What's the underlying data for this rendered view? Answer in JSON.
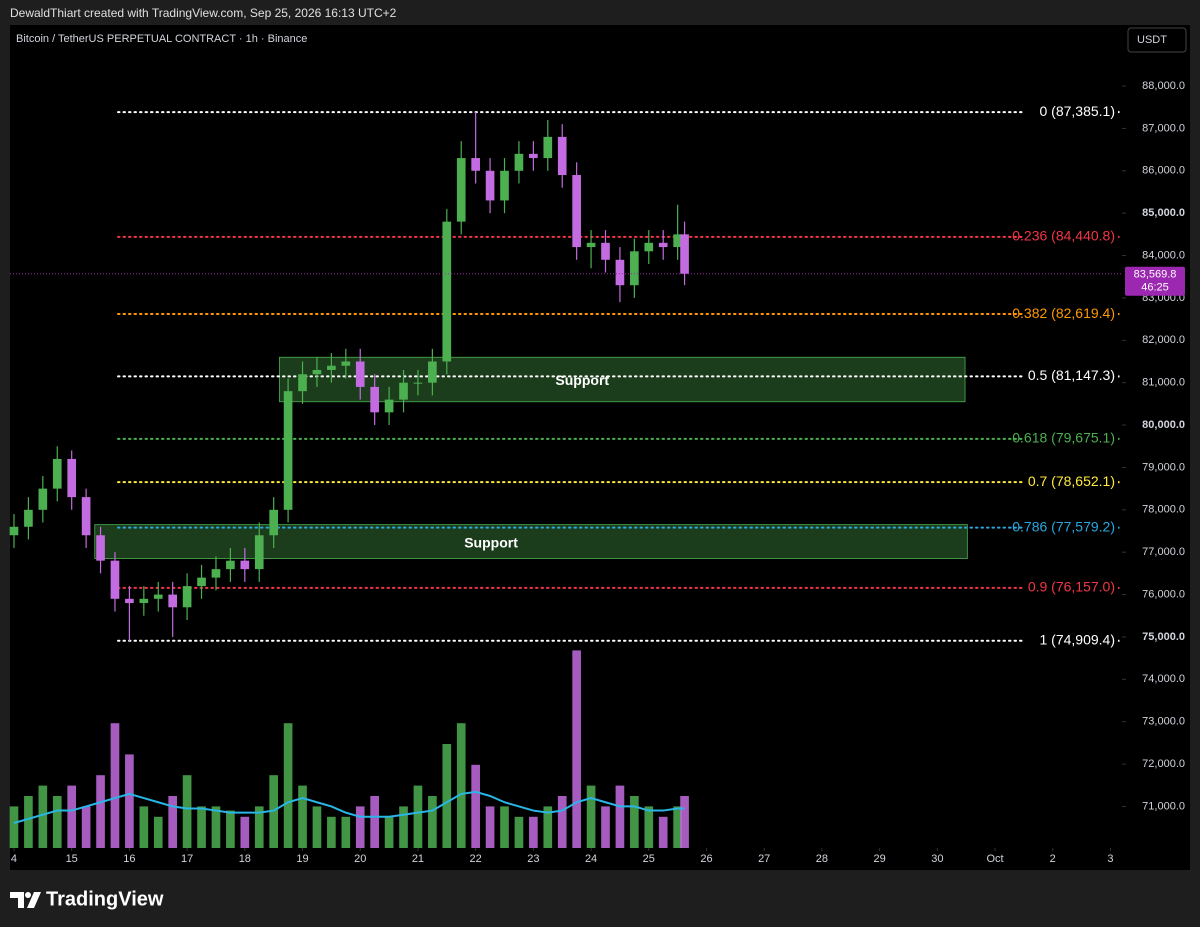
{
  "header": {
    "credit": "DewaldThiart created with TradingView.com, Sep 25, 2026 16:13 UTC+2"
  },
  "footer": {
    "brand": "TradingView"
  },
  "chart_data": {
    "type": "candlestick",
    "title": "Bitcoin / TetherUS PERPETUAL CONTRACT · 1h · Binance",
    "currency": "USDT",
    "up_color": "#4caf50",
    "down_color": "#c36be0",
    "ylim": [
      70020,
      89440
    ],
    "yticks": [
      {
        "value": 71000,
        "label": "71,000.0"
      },
      {
        "value": 72000,
        "label": "72,000.0"
      },
      {
        "value": 73000,
        "label": "73,000.0"
      },
      {
        "value": 74000,
        "label": "74,000.0"
      },
      {
        "value": 75000,
        "label": "75,000.0"
      },
      {
        "value": 76000,
        "label": "76,000.0"
      },
      {
        "value": 77000,
        "label": "77,000.0"
      },
      {
        "value": 78000,
        "label": "78,000.0"
      },
      {
        "value": 79000,
        "label": "79,000.0"
      },
      {
        "value": 80000,
        "label": "80,000.0"
      },
      {
        "value": 81000,
        "label": "81,000.0"
      },
      {
        "value": 82000,
        "label": "82,000.0"
      },
      {
        "value": 83000,
        "label": "83,000.0"
      },
      {
        "value": 84000,
        "label": "84,000.0"
      },
      {
        "value": 85000,
        "label": "85,000.0"
      },
      {
        "value": 86000,
        "label": "86,000.0"
      },
      {
        "value": 87000,
        "label": "87,000.0"
      },
      {
        "value": 88000,
        "label": "88,000.0"
      }
    ],
    "xlim": [
      -0.069,
      19.2
    ],
    "xticks": [
      {
        "value": 0,
        "label": "4"
      },
      {
        "value": 1,
        "label": "15"
      },
      {
        "value": 2,
        "label": "16"
      },
      {
        "value": 3,
        "label": "17"
      },
      {
        "value": 4,
        "label": "18"
      },
      {
        "value": 5,
        "label": "19"
      },
      {
        "value": 6,
        "label": "20"
      },
      {
        "value": 7,
        "label": "21"
      },
      {
        "value": 8,
        "label": "22"
      },
      {
        "value": 9,
        "label": "23"
      },
      {
        "value": 10,
        "label": "24"
      },
      {
        "value": 11,
        "label": "25"
      },
      {
        "value": 12,
        "label": "26"
      },
      {
        "value": 13,
        "label": "27"
      },
      {
        "value": 14,
        "label": "28"
      },
      {
        "value": 15,
        "label": "29"
      },
      {
        "value": 16,
        "label": "30"
      },
      {
        "value": 17,
        "label": "Oct"
      },
      {
        "value": 18,
        "label": "2"
      },
      {
        "value": 19,
        "label": "3"
      }
    ],
    "x": [
      0,
      0.25,
      0.5,
      0.75,
      1,
      1.25,
      1.5,
      1.75,
      2,
      2.25,
      2.5,
      2.75,
      3,
      3.25,
      3.5,
      3.75,
      4,
      4.25,
      4.5,
      4.75,
      5,
      5.25,
      5.5,
      5.75,
      6,
      6.25,
      6.5,
      6.75,
      7,
      7.25,
      7.5,
      7.75,
      8,
      8.25,
      8.5,
      8.75,
      9,
      9.25,
      9.5,
      9.75,
      10,
      10.25,
      10.5,
      10.75,
      11,
      11.25,
      11.5,
      11.62
    ],
    "open": [
      77400,
      77600,
      78000,
      78500,
      79200,
      78300,
      77400,
      76800,
      75900,
      75800,
      75900,
      76000,
      75700,
      76200,
      76400,
      76600,
      76800,
      76600,
      77400,
      78000,
      80800,
      81200,
      81300,
      81400,
      81500,
      80900,
      80300,
      80600,
      81000,
      81000,
      81500,
      84800,
      86300,
      86000,
      85300,
      86000,
      86400,
      86300,
      86800,
      85900,
      84200,
      84300,
      83900,
      83300,
      84100,
      84300,
      84200,
      84500
    ],
    "high": [
      77900,
      78300,
      78800,
      79500,
      79400,
      78500,
      77600,
      77000,
      76200,
      76200,
      76300,
      76300,
      76500,
      76700,
      76900,
      77100,
      77100,
      77700,
      78300,
      81100,
      81500,
      81600,
      81700,
      81800,
      81800,
      81200,
      80900,
      81300,
      81300,
      81800,
      85100,
      86700,
      87385,
      86300,
      86300,
      86700,
      86700,
      87200,
      87100,
      86200,
      84600,
      84600,
      84200,
      84400,
      84600,
      84600,
      85200,
      84800
    ],
    "low": [
      77100,
      77300,
      77700,
      78200,
      78000,
      77100,
      76500,
      75600,
      74909,
      75500,
      75600,
      75000,
      75400,
      75900,
      76100,
      76300,
      76300,
      76300,
      77100,
      77700,
      80500,
      80900,
      81000,
      81100,
      80600,
      80000,
      80000,
      80300,
      80700,
      80700,
      81200,
      84500,
      85700,
      85000,
      85000,
      85700,
      86000,
      86000,
      85600,
      83900,
      83700,
      83600,
      82900,
      83000,
      83800,
      83900,
      83900,
      83300
    ],
    "close": [
      77600,
      78000,
      78500,
      79200,
      78300,
      77400,
      76800,
      75900,
      75800,
      75900,
      76000,
      75700,
      76200,
      76400,
      76600,
      76800,
      76600,
      77400,
      78000,
      80800,
      81200,
      81300,
      81400,
      81500,
      80900,
      80300,
      80600,
      81000,
      81000,
      81500,
      84800,
      86300,
      86000,
      85300,
      86000,
      86400,
      86300,
      86800,
      85900,
      84200,
      84300,
      83900,
      83300,
      84100,
      84300,
      84200,
      84500,
      83570
    ],
    "volume": {
      "vlim": [
        0,
        100
      ],
      "ma_color": "#29b6e6",
      "values": [
        20,
        25,
        30,
        25,
        30,
        20,
        35,
        60,
        45,
        20,
        15,
        25,
        35,
        20,
        20,
        18,
        15,
        20,
        35,
        60,
        30,
        20,
        15,
        15,
        20,
        25,
        15,
        20,
        30,
        25,
        50,
        60,
        40,
        20,
        20,
        15,
        15,
        20,
        25,
        95,
        30,
        20,
        30,
        25,
        20,
        15,
        20,
        25
      ],
      "ma": [
        12,
        14,
        16,
        18,
        18,
        20,
        22,
        24,
        26,
        24,
        22,
        20,
        19,
        19,
        18,
        17,
        17,
        17,
        18,
        22,
        24,
        22,
        20,
        17,
        15,
        15,
        15,
        16,
        17,
        18,
        22,
        26,
        27,
        25,
        22,
        20,
        18,
        17,
        18,
        22,
        24,
        22,
        20,
        20,
        18,
        18,
        19,
        19
      ]
    },
    "fib_levels": [
      {
        "value": 87385.1,
        "label": "0 (87,385.1)",
        "color": "#ffffff"
      },
      {
        "value": 84440.8,
        "label": "0.236 (84,440.8)",
        "color": "#f23645"
      },
      {
        "value": 82619.4,
        "label": "0.382 (82,619.4)",
        "color": "#ff9800"
      },
      {
        "value": 81147.3,
        "label": "0.5 (81,147.3)",
        "color": "#ffffff"
      },
      {
        "value": 79675.1,
        "label": "0.618 (79,675.1)",
        "color": "#4caf50"
      },
      {
        "value": 78652.1,
        "label": "0.7 (78,652.1)",
        "color": "#ffeb3b"
      },
      {
        "value": 77579.2,
        "label": "0.786 (77,579.2)",
        "color": "#2aa7df"
      },
      {
        "value": 76157.0,
        "label": "0.9 (76,157.0)",
        "color": "#f23645"
      },
      {
        "value": 74909.4,
        "label": "1 (74,909.4)",
        "color": "#ffffff"
      }
    ],
    "zones": [
      {
        "label": "Support",
        "low": 80550,
        "high": 81600,
        "x": [
          4.6,
          16.48
        ]
      },
      {
        "label": "Support",
        "low": 76850,
        "high": 77650,
        "x": [
          1.4,
          16.52
        ]
      }
    ],
    "last_price": {
      "value": 83569.8,
      "label": "83,569.8",
      "countdown": "46:25",
      "color": "#9c27b0"
    }
  }
}
